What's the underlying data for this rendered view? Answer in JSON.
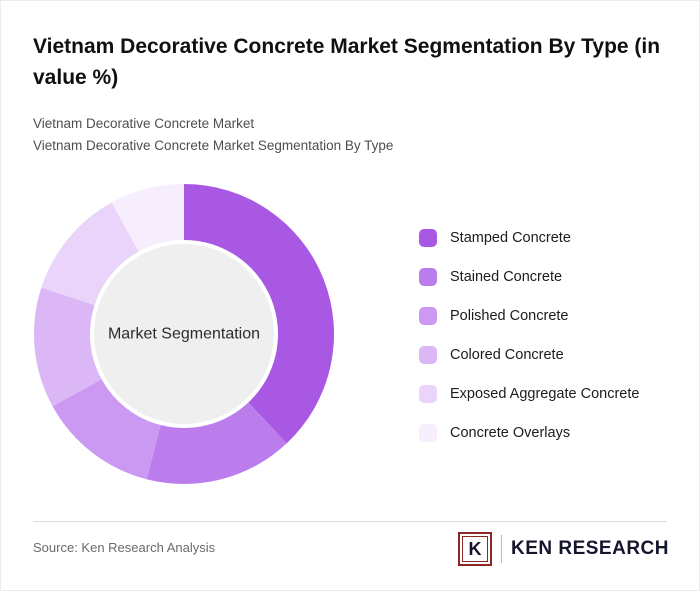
{
  "header": {
    "title": "Vietnam Decorative Concrete Market Segmentation By Type (in value %)",
    "subtitle_line1": "Vietnam Decorative Concrete Market",
    "subtitle_line2": "Vietnam Decorative Concrete Market Segmentation By Type"
  },
  "chart_data": {
    "type": "pie",
    "donut": true,
    "center_label": "Market Segmentation",
    "legend_position": "right",
    "start_angle_deg": 0,
    "direction": "clockwise",
    "inner_circle_color": "#efefef",
    "segments": [
      {
        "label": "Stamped Concrete",
        "value": 38,
        "color": "#a958e3"
      },
      {
        "label": "Stained Concrete",
        "value": 16,
        "color": "#bc7dec"
      },
      {
        "label": "Polished Concrete",
        "value": 13,
        "color": "#cb99f1"
      },
      {
        "label": "Colored Concrete",
        "value": 13,
        "color": "#dbb7f6"
      },
      {
        "label": "Exposed Aggregate Concrete",
        "value": 12,
        "color": "#ead4fa"
      },
      {
        "label": "Concrete Overlays",
        "value": 8,
        "color": "#f6eefd"
      }
    ]
  },
  "footer": {
    "source": "Source: Ken Research Analysis",
    "logo": {
      "letter": "K",
      "text": "KEN RESEARCH"
    }
  }
}
